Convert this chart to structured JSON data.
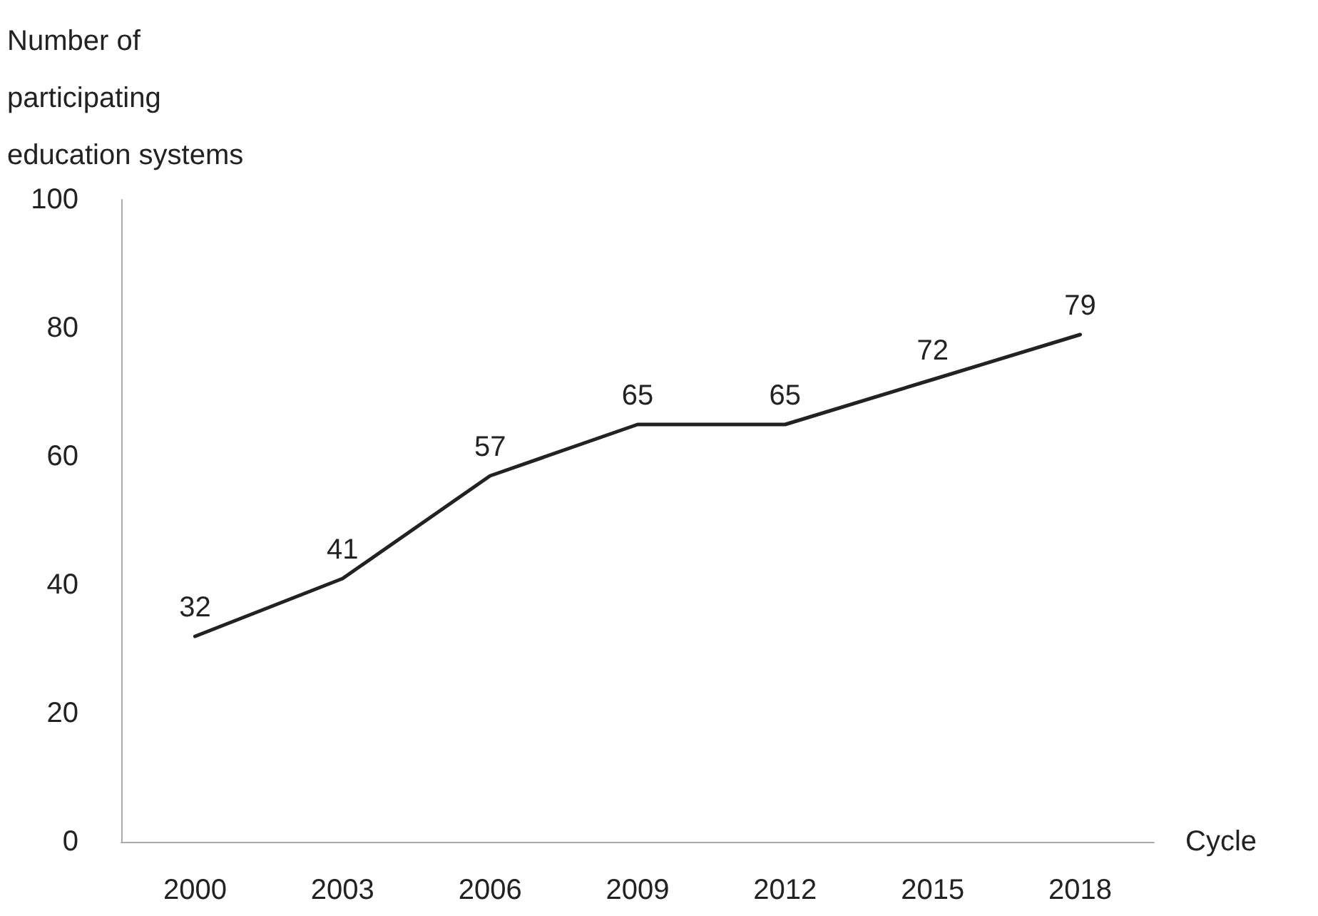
{
  "chart_data": {
    "type": "line",
    "ylabel": "Number of participating education systems",
    "xlabel": "Cycle",
    "categories": [
      "2000",
      "2003",
      "2006",
      "2009",
      "2012",
      "2015",
      "2018"
    ],
    "series": [
      {
        "color": "#222222",
        "values": [
          32,
          41,
          57,
          65,
          65,
          72,
          79
        ]
      }
    ],
    "ylim": [
      0,
      100
    ],
    "yticks": [
      0,
      20,
      40,
      60,
      80,
      100
    ],
    "grid": false,
    "marker": "none",
    "line_style": "solid",
    "data_labels": true
  }
}
